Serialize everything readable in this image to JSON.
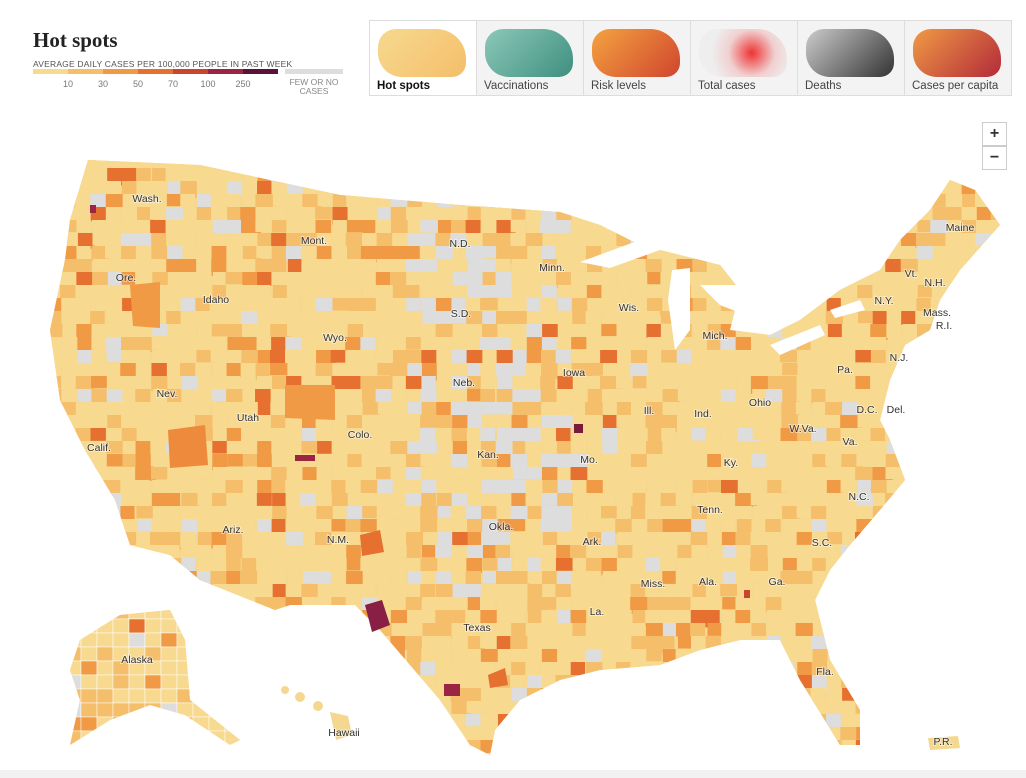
{
  "header": {
    "title": "Hot spots",
    "subtitle": "AVERAGE DAILY CASES PER 100,000 PEOPLE IN PAST WEEK"
  },
  "legend": {
    "ticks": [
      10,
      30,
      50,
      70,
      100,
      250
    ],
    "colors": [
      "#f7d98f",
      "#f4be6a",
      "#f09a45",
      "#e5702f",
      "#c8452e",
      "#9a2441",
      "#5c1238"
    ],
    "no_cases_label": "FEW OR NO CASES",
    "no_cases_color": "#dddddd"
  },
  "tabs": [
    "Hot spots",
    "Vaccinations",
    "Risk levels",
    "Total cases",
    "Deaths",
    "Cases per capita"
  ],
  "selected_tab": 0,
  "zoom": {
    "in": "+",
    "out": "−"
  },
  "states": [
    "Wash.",
    "Ore.",
    "Calif.",
    "Idaho",
    "Nev.",
    "Utah",
    "Ariz.",
    "Mont.",
    "Wyo.",
    "Colo.",
    "N.M.",
    "N.D.",
    "S.D.",
    "Neb.",
    "Kan.",
    "Okla.",
    "Texas",
    "Minn.",
    "Iowa",
    "Mo.",
    "Ark.",
    "La.",
    "Wis.",
    "Ill.",
    "Miss.",
    "Mich.",
    "Ind.",
    "Ky.",
    "Tenn.",
    "Ala.",
    "Ohio",
    "W.Va.",
    "Va.",
    "Ga.",
    "Fla.",
    "S.C.",
    "N.C.",
    "Pa.",
    "N.Y.",
    "Vt.",
    "N.H.",
    "Maine",
    "Mass.",
    "R.I.",
    "N.J.",
    "D.C.",
    "Del.",
    "Alaska",
    "Hawaii",
    "P.R."
  ]
}
